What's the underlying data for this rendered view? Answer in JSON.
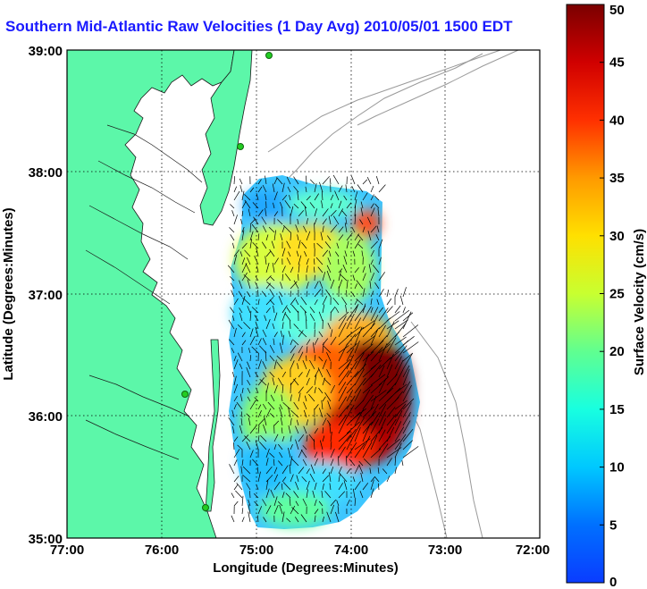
{
  "title": "Southern Mid-Atlantic Raw Velocities (1 Day Avg) 2010/05/01 1500 EDT",
  "x_axis": {
    "label": "Longitude (Degrees:Minutes)",
    "ticks": [
      "77:00",
      "76:00",
      "75:00",
      "74:00",
      "73:00",
      "72:00"
    ]
  },
  "y_axis": {
    "label": "Latitude (Degrees:Minutes)",
    "ticks": [
      "39:00",
      "38:00",
      "37:00",
      "36:00",
      "35:00"
    ]
  },
  "colorbar": {
    "label": "Surface Velocity (cm/s)",
    "ticks": [
      "50",
      "45",
      "40",
      "35",
      "30",
      "25",
      "20",
      "15",
      "10",
      "5",
      "0"
    ],
    "min": 0,
    "max": 50
  },
  "colors": {
    "land": "#5cf7a9",
    "title": "#1a1aff",
    "background": "#ffffff"
  }
}
